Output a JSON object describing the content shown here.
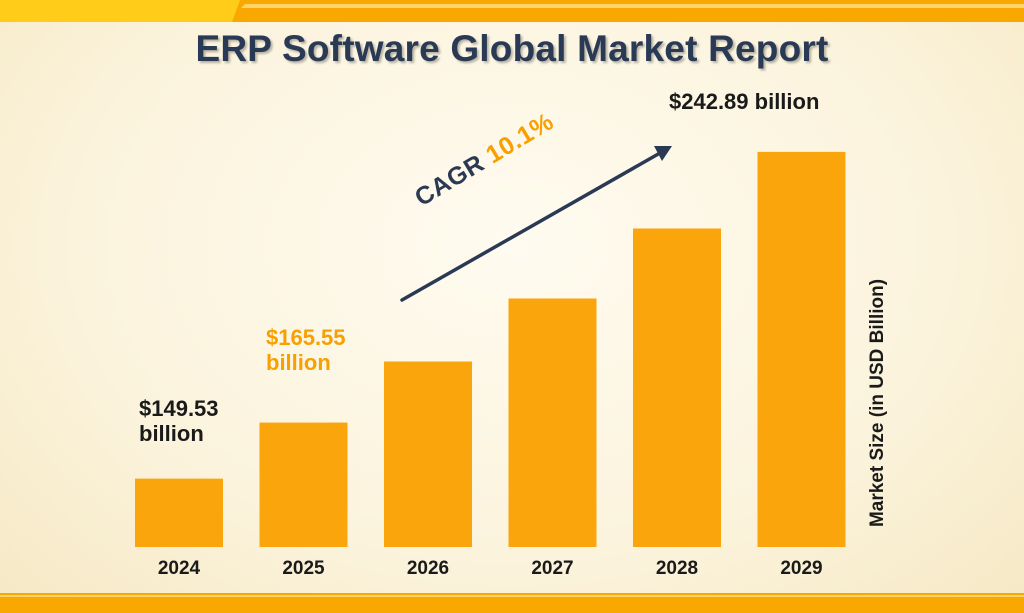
{
  "title": "ERP Software Global Market Report",
  "y_axis_label": "Market Size (in USD Billion)",
  "annotations": {
    "label_2024": {
      "line1": "$149.53",
      "line2": "billion"
    },
    "label_2025": {
      "line1": "$165.55",
      "line2": "billion"
    },
    "label_2029": "$242.89 billion",
    "cagr_prefix": "CAGR",
    "cagr_value": "10.1%"
  },
  "colors": {
    "bar": "#fba50d",
    "title": "#2a3a55",
    "accent": "#f8a000",
    "arrow": "#2a3a55",
    "band": "#f8a800"
  },
  "chart_data": {
    "type": "bar",
    "title": "ERP Software Global Market Report",
    "xlabel": "",
    "ylabel": "Market Size (in USD Billion)",
    "categories": [
      "2024",
      "2025",
      "2026",
      "2027",
      "2028",
      "2029"
    ],
    "values": [
      149.53,
      165.55,
      183.0,
      201.0,
      221.0,
      242.89
    ],
    "ylim": [
      130,
      250
    ],
    "grid": false,
    "legend": "none"
  }
}
